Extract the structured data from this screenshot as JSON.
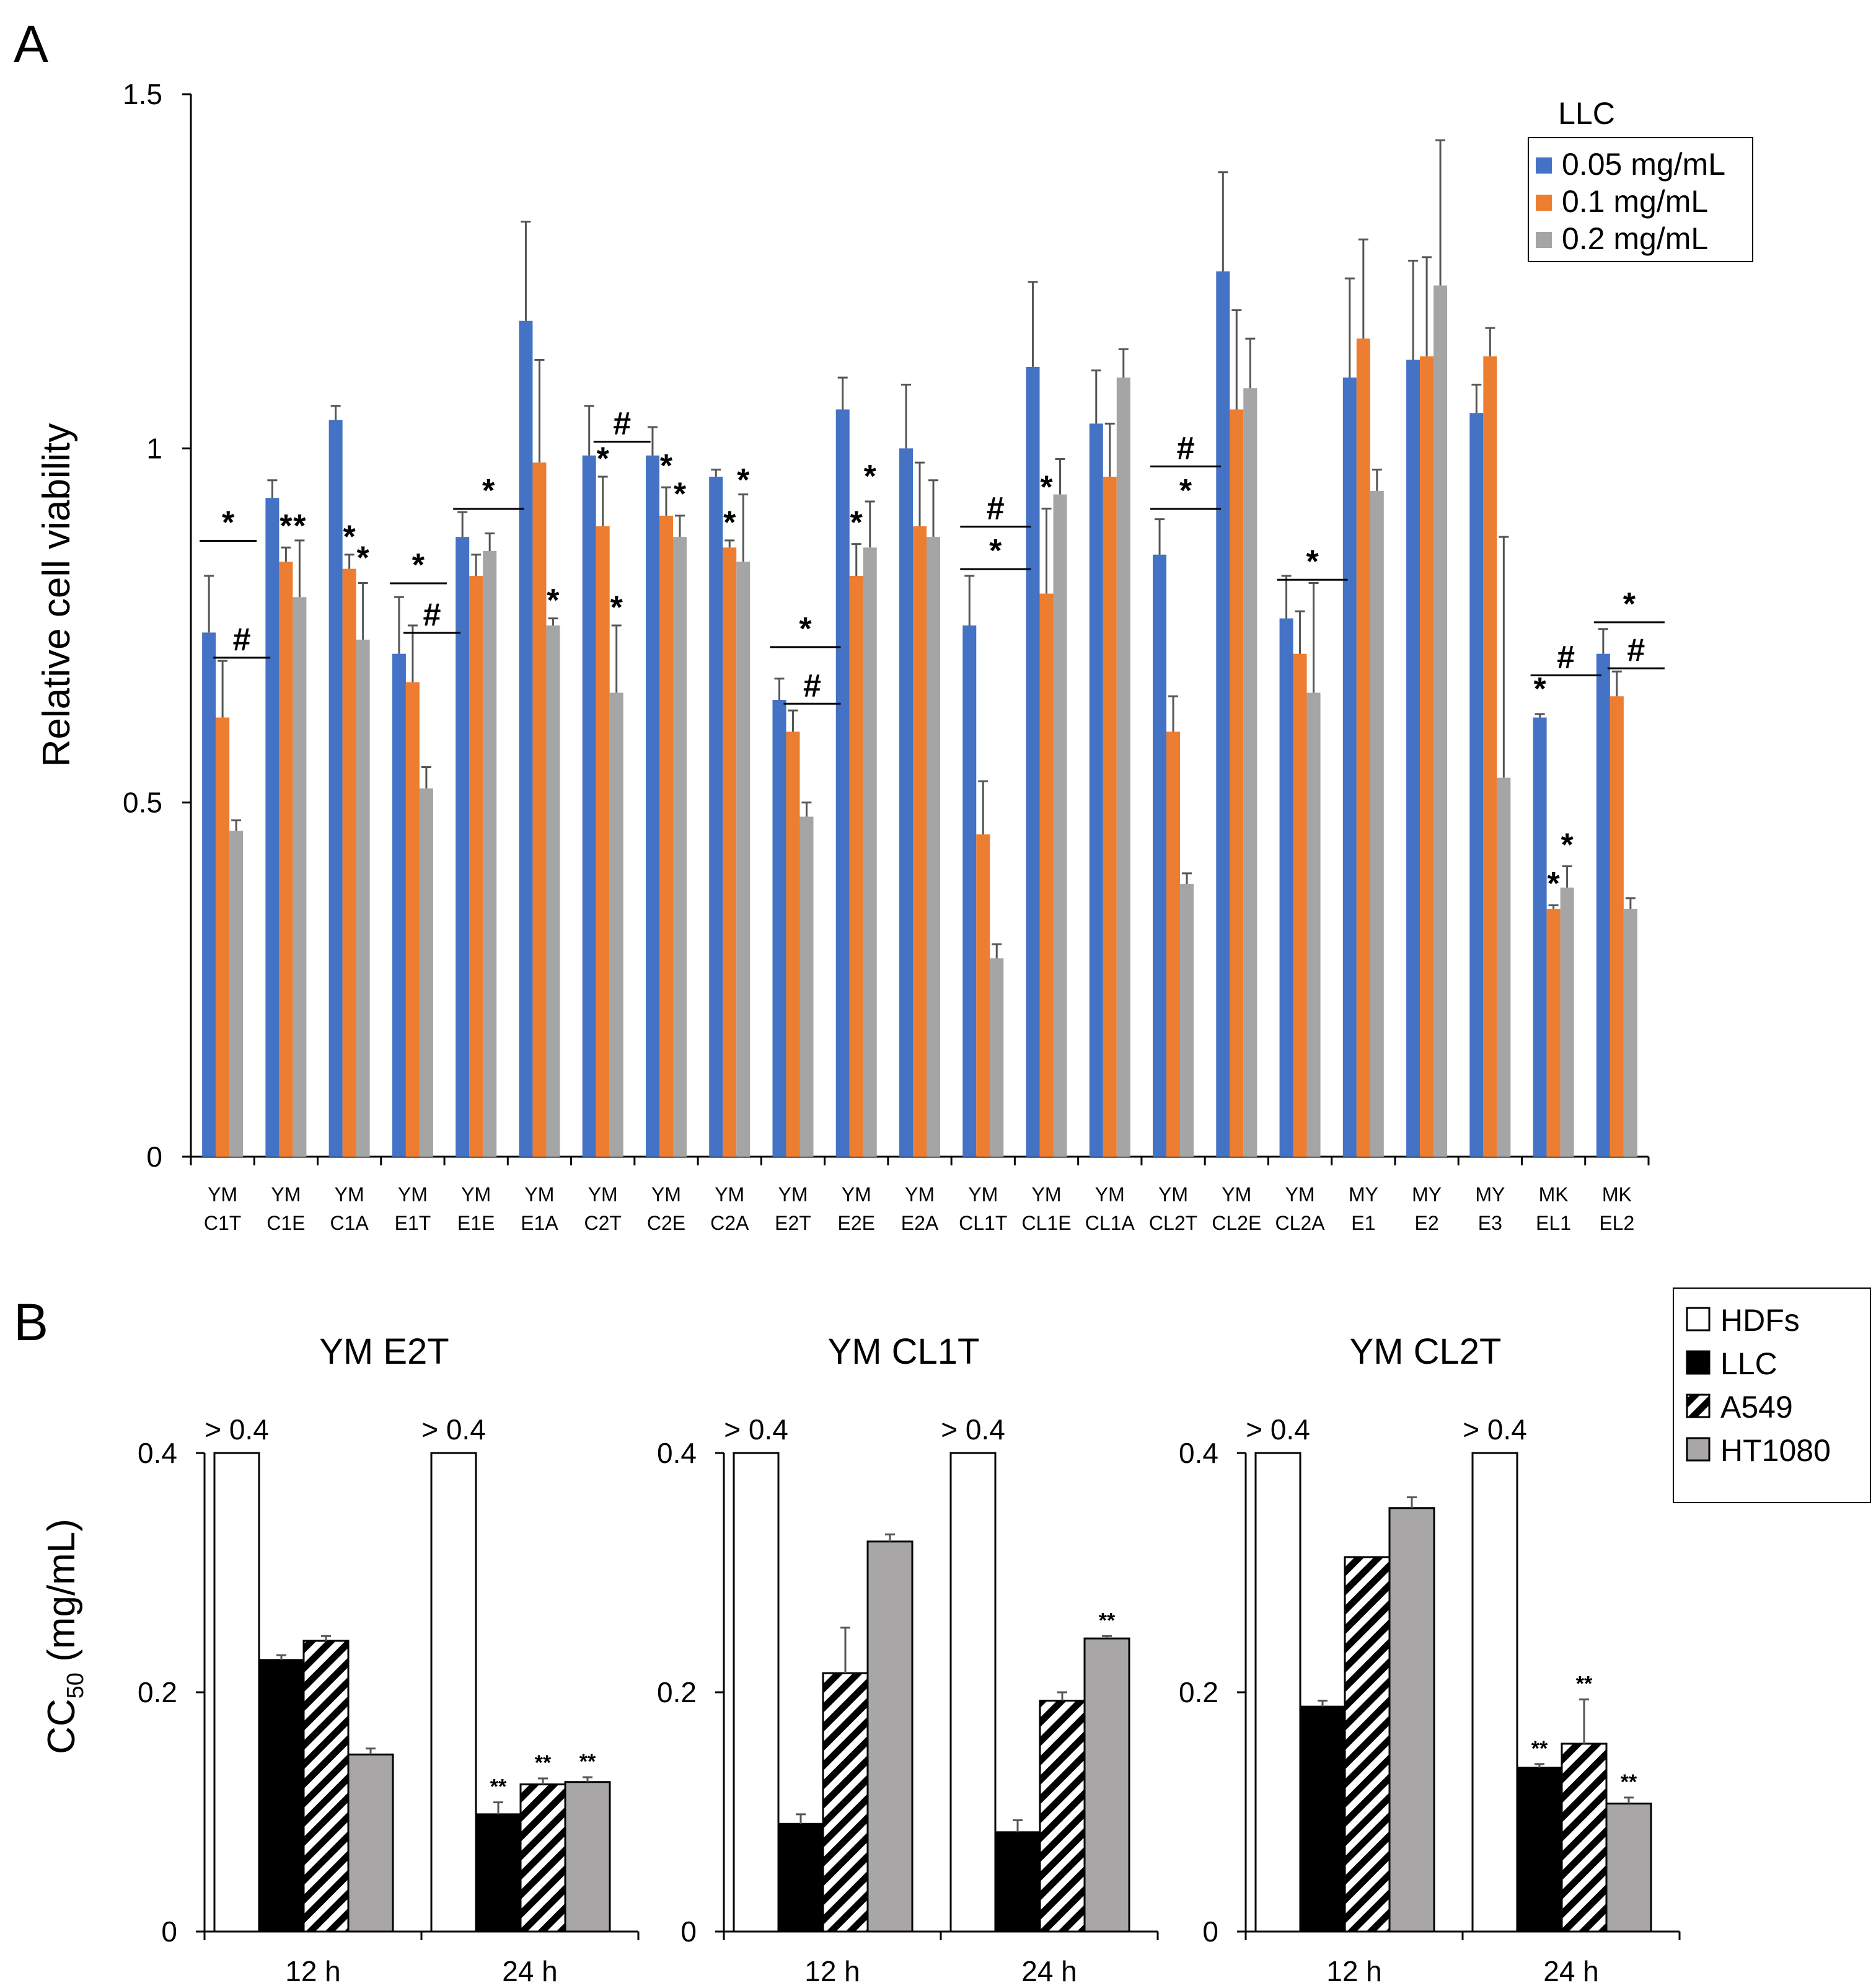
{
  "figure": {
    "panel_a_label": "A",
    "panel_b_label": "B"
  },
  "colors": {
    "blue": "#4472c4",
    "orange": "#ed7d31",
    "gray": "#a5a5a5",
    "hdfs": "#ffffff",
    "llc": "#000000",
    "ht1080": "#a8a6a6"
  },
  "chart_data": [
    {
      "id": "panelA",
      "type": "bar",
      "legend_title": "LLC",
      "ylabel": "Relative cell viability",
      "xlabel": "",
      "ylim": [
        0,
        1.5
      ],
      "yticks": [
        0,
        0.5,
        1,
        1.5
      ],
      "ytick_labels": [
        "0",
        "0.5",
        "1",
        "1.5"
      ],
      "categories": [
        [
          "YM",
          "C1T"
        ],
        [
          "YM",
          "C1E"
        ],
        [
          "YM",
          "C1A"
        ],
        [
          "YM",
          "E1T"
        ],
        [
          "YM",
          "E1E"
        ],
        [
          "YM",
          "E1A"
        ],
        [
          "YM",
          "C2T"
        ],
        [
          "YM",
          "C2E"
        ],
        [
          "YM",
          "C2A"
        ],
        [
          "YM",
          "E2T"
        ],
        [
          "YM",
          "E2E"
        ],
        [
          "YM",
          "E2A"
        ],
        [
          "YM",
          "CL1T"
        ],
        [
          "YM",
          "CL1E"
        ],
        [
          "YM",
          "CL1A"
        ],
        [
          "YM",
          "CL2T"
        ],
        [
          "YM",
          "CL2E"
        ],
        [
          "YM",
          "CL2A"
        ],
        [
          "MY",
          "E1"
        ],
        [
          "MY",
          "E2"
        ],
        [
          "MY",
          "E3"
        ],
        [
          "MK",
          "EL1"
        ],
        [
          "MK",
          "EL2"
        ]
      ],
      "series": [
        {
          "name": "0.05  mg/mL",
          "color_key": "blue",
          "values": [
            0.74,
            0.93,
            1.04,
            0.71,
            0.875,
            1.18,
            0.99,
            0.99,
            0.96,
            0.645,
            1.055,
            1.0,
            0.75,
            1.115,
            1.035,
            0.85,
            1.25,
            0.76,
            1.1,
            1.125,
            1.05,
            0.62,
            0.71
          ],
          "errors": [
            0.08,
            0.025,
            0.02,
            0.08,
            0.035,
            0.14,
            0.07,
            0.04,
            0.01,
            0.03,
            0.045,
            0.09,
            0.07,
            0.12,
            0.075,
            0.05,
            0.14,
            0.06,
            0.14,
            0.14,
            0.04,
            0.005,
            0.035
          ]
        },
        {
          "name": "0.1  mg/mL",
          "color_key": "orange",
          "values": [
            0.62,
            0.84,
            0.83,
            0.67,
            0.82,
            0.98,
            0.89,
            0.905,
            0.86,
            0.6,
            0.82,
            0.89,
            0.455,
            0.795,
            0.96,
            0.6,
            1.055,
            0.71,
            1.155,
            1.13,
            1.13,
            0.35,
            0.65
          ],
          "errors": [
            0.08,
            0.02,
            0.02,
            0.08,
            0.03,
            0.145,
            0.07,
            0.04,
            0.01,
            0.03,
            0.045,
            0.09,
            0.075,
            0.12,
            0.075,
            0.05,
            0.14,
            0.06,
            0.14,
            0.14,
            0.04,
            0.005,
            0.035
          ]
        },
        {
          "name": "0.2 mg/mL",
          "color_key": "gray",
          "values": [
            0.46,
            0.79,
            0.73,
            0.52,
            0.855,
            0.75,
            0.655,
            0.875,
            0.84,
            0.48,
            0.86,
            0.875,
            0.28,
            0.935,
            1.1,
            0.385,
            1.085,
            0.655,
            0.94,
            1.23,
            0.535,
            0.38,
            0.35
          ],
          "errors": [
            0.015,
            0.08,
            0.08,
            0.03,
            0.025,
            0.01,
            0.095,
            0.03,
            0.095,
            0.02,
            0.065,
            0.08,
            0.02,
            0.05,
            0.04,
            0.015,
            0.07,
            0.155,
            0.03,
            0.205,
            0.34,
            0.03,
            0.015
          ]
        }
      ],
      "annotations": [
        {
          "cat": 0,
          "series": 0,
          "text": "*",
          "line_to": 1,
          "y": 0.88
        },
        {
          "cat": 0,
          "series": 1,
          "text": "#",
          "line_to": 2,
          "y": 0.715
        },
        {
          "cat": 1,
          "series": 1,
          "text": "*",
          "y": 0.875
        },
        {
          "cat": 1,
          "series": 2,
          "text": "*",
          "y": 0.875
        },
        {
          "cat": 2,
          "series": 1,
          "text": "*",
          "y": 0.86
        },
        {
          "cat": 2,
          "series": 2,
          "text": "*",
          "y": 0.83
        },
        {
          "cat": 3,
          "series": 0,
          "text": "*",
          "line_to": 1,
          "y": 0.82
        },
        {
          "cat": 3,
          "series": 1,
          "text": "#",
          "line_to": 2,
          "y": 0.75
        },
        {
          "cat": 4,
          "series": 0,
          "text": "*",
          "line_to": 2,
          "y": 0.925
        },
        {
          "cat": 5,
          "series": 2,
          "text": "*",
          "y": 0.77
        },
        {
          "cat": 6,
          "series": 1,
          "text": "*",
          "y": 0.97
        },
        {
          "cat": 6,
          "series": 1,
          "text": "#",
          "line_to": 2,
          "y": 1.02
        },
        {
          "cat": 6,
          "series": 2,
          "text": "*",
          "y": 0.76
        },
        {
          "cat": 7,
          "series": 1,
          "text": "*",
          "y": 0.96
        },
        {
          "cat": 7,
          "series": 2,
          "text": "*",
          "y": 0.92
        },
        {
          "cat": 8,
          "series": 1,
          "text": "*",
          "y": 0.88
        },
        {
          "cat": 8,
          "series": 2,
          "text": "*",
          "y": 0.94
        },
        {
          "cat": 9,
          "series": 0,
          "text": "*",
          "line_to": 2,
          "y": 0.73
        },
        {
          "cat": 9,
          "series": 1,
          "text": "#",
          "line_to": 2,
          "y": 0.65
        },
        {
          "cat": 10,
          "series": 1,
          "text": "*",
          "y": 0.88
        },
        {
          "cat": 10,
          "series": 2,
          "text": "*",
          "y": 0.945
        },
        {
          "cat": 12,
          "series": 0,
          "text": "#",
          "line_to": 2,
          "y": 0.9
        },
        {
          "cat": 12,
          "series": 0,
          "text": "*",
          "line_to": 2,
          "y": 0.84
        },
        {
          "cat": 13,
          "series": 1,
          "text": "*",
          "y": 0.93
        },
        {
          "cat": 15,
          "series": 0,
          "text": "#",
          "line_to": 2,
          "y": 0.985
        },
        {
          "cat": 15,
          "series": 0,
          "text": "*",
          "line_to": 2,
          "y": 0.925
        },
        {
          "cat": 17,
          "series": 0,
          "text": "*",
          "line_to": 2,
          "y": 0.825
        },
        {
          "cat": 21,
          "series": 0,
          "text": "#",
          "line_to": 2,
          "y": 0.69
        },
        {
          "cat": 21,
          "series": 0,
          "text": "*",
          "y": 0.645
        },
        {
          "cat": 21,
          "series": 1,
          "text": "*",
          "y": 0.37
        },
        {
          "cat": 21,
          "series": 2,
          "text": "*",
          "y": 0.425
        },
        {
          "cat": 22,
          "series": 0,
          "text": "*",
          "line_to": 2,
          "y": 0.765
        },
        {
          "cat": 22,
          "series": 1,
          "text": "#",
          "line_to": 2,
          "y": 0.7
        }
      ]
    },
    {
      "id": "panelB",
      "type": "bar",
      "ylabel": "CC",
      "ylabel_sub": "50",
      "ylabel_unit": " (mg/mL)",
      "ylim": [
        0,
        0.4
      ],
      "yticks": [
        0,
        0.2,
        0.4
      ],
      "ytick_labels": [
        "0",
        "0.2",
        "0.4"
      ],
      "legend": [
        {
          "name": "HDFs",
          "style": "white"
        },
        {
          "name": "LLC",
          "style": "black"
        },
        {
          "name": "A549",
          "style": "hatch"
        },
        {
          "name": "HT1080",
          "style": "gray"
        }
      ],
      "subplots": [
        {
          "title": "YM E2T",
          "groups": [
            "12 h",
            "24 h"
          ],
          "overflow_label": "> 0.4",
          "values": [
            [
              0.4,
              0.227,
              0.243,
              0.148
            ],
            [
              0.4,
              0.098,
              0.123,
              0.125
            ]
          ],
          "errors": [
            [
              0,
              0.004,
              0.004,
              0.005
            ],
            [
              0,
              0.01,
              0.005,
              0.004
            ]
          ],
          "overflow": [
            true,
            true
          ],
          "marks": [
            [
              "",
              "",
              "",
              ""
            ],
            [
              "",
              "**",
              "**",
              "**"
            ]
          ]
        },
        {
          "title": "YM CL1T",
          "groups": [
            "12 h",
            "24 h"
          ],
          "overflow_label": "> 0.4",
          "values": [
            [
              0.4,
              0.09,
              0.216,
              0.326
            ],
            [
              0.4,
              0.083,
              0.193,
              0.245
            ]
          ],
          "errors": [
            [
              0,
              0.008,
              0.038,
              0.006
            ],
            [
              0,
              0.01,
              0.007,
              0.002
            ]
          ],
          "overflow": [
            true,
            true
          ],
          "marks": [
            [
              "",
              "",
              "",
              ""
            ],
            [
              "",
              "",
              "",
              "**"
            ]
          ]
        },
        {
          "title": "YM CL2T",
          "groups": [
            "12 h",
            "24 h"
          ],
          "overflow_label": "> 0.4",
          "values": [
            [
              0.4,
              0.188,
              0.313,
              0.354
            ],
            [
              0.4,
              0.137,
              0.157,
              0.107
            ]
          ],
          "errors": [
            [
              0,
              0.005,
              0,
              0.009
            ],
            [
              0,
              0.003,
              0.037,
              0.005
            ]
          ],
          "overflow": [
            true,
            true
          ],
          "marks": [
            [
              "",
              "",
              "",
              ""
            ],
            [
              "",
              "**",
              "**",
              "**"
            ]
          ]
        }
      ]
    }
  ]
}
